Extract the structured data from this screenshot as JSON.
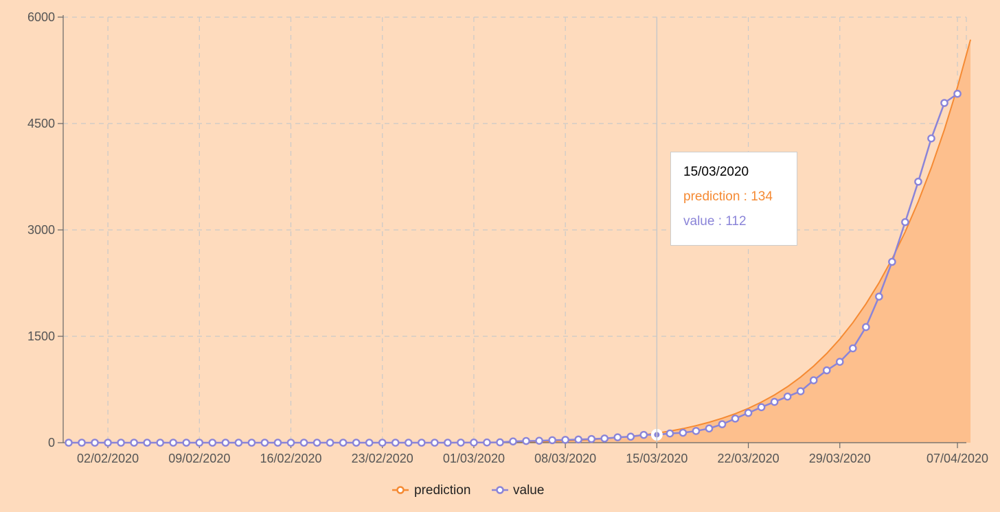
{
  "chart_data": {
    "type": "line",
    "x_start": "30/01/2020",
    "x_end": "08/04/2020",
    "x_ticks": [
      "02/02/2020",
      "09/02/2020",
      "16/02/2020",
      "23/02/2020",
      "01/03/2020",
      "08/03/2020",
      "15/03/2020",
      "22/03/2020",
      "29/03/2020",
      "07/04/2020"
    ],
    "y_ticks": [
      0,
      1500,
      3000,
      4500,
      6000
    ],
    "ylim": [
      0,
      6000
    ],
    "grid": true,
    "legend_position": "bottom",
    "series": [
      {
        "name": "prediction",
        "color": "#F58A33",
        "fill": "#FDBF8D",
        "type": "area",
        "values": [
          0,
          0,
          0,
          0,
          0,
          0,
          0,
          0,
          0,
          0,
          0,
          0,
          0,
          0,
          0,
          0,
          0,
          0,
          0,
          0,
          0,
          0,
          0,
          0,
          0,
          0,
          0,
          0,
          0,
          0,
          1,
          2,
          3,
          5,
          7,
          10,
          14,
          19,
          26,
          34,
          44,
          57,
          72,
          90,
          111,
          134,
          163,
          198,
          240,
          288,
          344,
          408,
          484,
          572,
          673,
          790,
          925,
          1080,
          1258,
          1461,
          1693,
          1957,
          2255,
          2592,
          2972,
          3399,
          3878,
          4414,
          5013,
          5683
        ]
      },
      {
        "name": "value",
        "color": "#8A84D8",
        "type": "line",
        "values": [
          0,
          0,
          0,
          0,
          0,
          0,
          0,
          0,
          0,
          0,
          0,
          0,
          0,
          0,
          0,
          0,
          0,
          0,
          0,
          0,
          0,
          0,
          0,
          0,
          0,
          0,
          0,
          0,
          0,
          0,
          1,
          2,
          3,
          5,
          18,
          24,
          27,
          35,
          40,
          45,
          52,
          59,
          76,
          85,
          110,
          112,
          130,
          140,
          165,
          200,
          260,
          340,
          420,
          500,
          575,
          650,
          725,
          880,
          1020,
          1140,
          1330,
          1630,
          2060,
          2550,
          3110,
          3680,
          4290,
          4790,
          4920
        ]
      }
    ],
    "tooltip": {
      "date": "15/03/2020",
      "prediction_text": "prediction : 134",
      "value_text": "value : 112"
    }
  }
}
